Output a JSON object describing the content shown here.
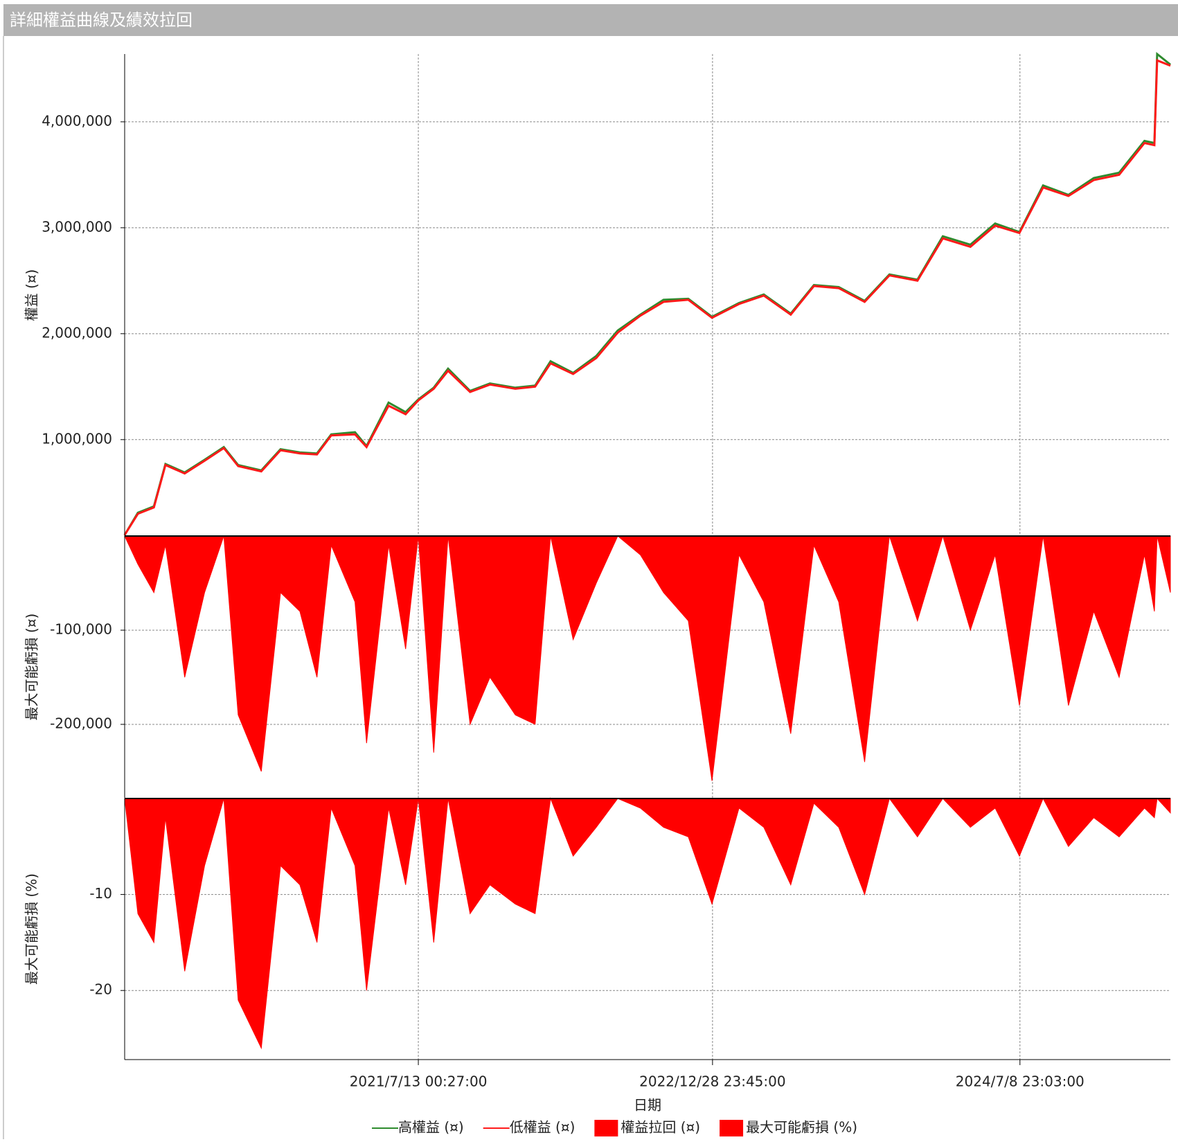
{
  "header": {
    "title": "詳細權益曲線及績效拉回"
  },
  "chart_data": [
    {
      "type": "line",
      "ylabel": "權益 (¤)",
      "x": [
        "2020-01-27",
        "2020-02-20",
        "2020-03-20",
        "2020-04-10",
        "2020-05-15",
        "2020-06-20",
        "2020-07-25",
        "2020-08-20",
        "2020-10-01",
        "2020-11-05",
        "2020-12-10",
        "2021-01-10",
        "2021-02-05",
        "2021-03-20",
        "2021-04-10",
        "2021-05-20",
        "2021-06-20",
        "2021-07-13",
        "2021-08-10",
        "2021-09-05",
        "2021-10-15",
        "2021-11-20",
        "2022-01-05",
        "2022-02-10",
        "2022-03-10",
        "2022-04-20",
        "2022-06-01",
        "2022-07-10",
        "2022-08-20",
        "2022-10-01",
        "2022-11-15",
        "2022-12-28",
        "2023-02-15",
        "2023-04-01",
        "2023-05-20",
        "2023-07-01",
        "2023-08-15",
        "2023-10-01",
        "2023-11-15",
        "2024-01-05",
        "2024-02-20",
        "2024-04-10",
        "2024-05-25",
        "2024-07-08",
        "2024-08-20",
        "2024-10-05",
        "2024-11-20",
        "2025-01-05",
        "2025-02-20",
        "2025-03-10",
        "2025-03-15",
        "2025-04-08"
      ],
      "xlim": [
        "2020-01-27",
        "2025-04-08"
      ],
      "xticks": [
        {
          "value": "2021-07-13T00:27:00",
          "label": "2021/7/13 00:27:00"
        },
        {
          "value": "2022-12-28T23:45:00",
          "label": "2022/12/28 23:45:00"
        },
        {
          "value": "2024-07-08T23:03:00",
          "label": "2024/7/8 23:03:00"
        }
      ],
      "ylim": [
        90000,
        4640000
      ],
      "yticks": [
        {
          "value": 1000000,
          "label": "1,000,000"
        },
        {
          "value": 2000000,
          "label": "2,000,000"
        },
        {
          "value": 3000000,
          "label": "3,000,000"
        },
        {
          "value": 4000000,
          "label": "4,000,000"
        }
      ],
      "grid": true,
      "series": [
        {
          "name": "高權益 (¤)",
          "color": "#2e8b2e",
          "values": [
            100000,
            310000,
            370000,
            770000,
            690000,
            810000,
            930000,
            760000,
            710000,
            910000,
            880000,
            870000,
            1050000,
            1070000,
            940000,
            1350000,
            1260000,
            1380000,
            1490000,
            1670000,
            1460000,
            1530000,
            1490000,
            1510000,
            1740000,
            1630000,
            1790000,
            2030000,
            2180000,
            2320000,
            2330000,
            2160000,
            2290000,
            2370000,
            2190000,
            2460000,
            2440000,
            2310000,
            2560000,
            2510000,
            2920000,
            2840000,
            3040000,
            2960000,
            3400000,
            3310000,
            3470000,
            3520000,
            3820000,
            3800000,
            4640000,
            4540000
          ]
        },
        {
          "name": "低權益 (¤)",
          "color": "#ff1a1a",
          "values": [
            100000,
            300000,
            360000,
            760000,
            680000,
            800000,
            920000,
            750000,
            700000,
            900000,
            870000,
            860000,
            1040000,
            1050000,
            930000,
            1320000,
            1240000,
            1370000,
            1480000,
            1650000,
            1450000,
            1520000,
            1480000,
            1500000,
            1720000,
            1620000,
            1770000,
            2010000,
            2170000,
            2300000,
            2320000,
            2150000,
            2280000,
            2360000,
            2180000,
            2450000,
            2430000,
            2300000,
            2550000,
            2500000,
            2900000,
            2820000,
            3020000,
            2950000,
            3380000,
            3300000,
            3450000,
            3500000,
            3800000,
            3780000,
            4580000,
            4530000
          ]
        }
      ]
    },
    {
      "type": "area",
      "ylabel": "最大可能虧損 (¤)",
      "x": [
        "2020-01-27",
        "2020-02-20",
        "2020-03-20",
        "2020-04-10",
        "2020-05-15",
        "2020-06-20",
        "2020-07-25",
        "2020-08-20",
        "2020-10-01",
        "2020-11-05",
        "2020-12-10",
        "2021-01-10",
        "2021-02-05",
        "2021-03-20",
        "2021-04-10",
        "2021-05-20",
        "2021-06-20",
        "2021-07-13",
        "2021-08-10",
        "2021-09-05",
        "2021-10-15",
        "2021-11-20",
        "2022-01-05",
        "2022-02-10",
        "2022-03-10",
        "2022-04-20",
        "2022-06-01",
        "2022-07-10",
        "2022-08-20",
        "2022-10-01",
        "2022-11-15",
        "2022-12-28",
        "2023-02-15",
        "2023-04-01",
        "2023-05-20",
        "2023-07-01",
        "2023-08-15",
        "2023-10-01",
        "2023-11-15",
        "2024-01-05",
        "2024-02-20",
        "2024-04-10",
        "2024-05-25",
        "2024-07-08",
        "2024-08-20",
        "2024-10-05",
        "2024-11-20",
        "2025-01-05",
        "2025-02-20",
        "2025-03-10",
        "2025-03-15",
        "2025-04-08"
      ],
      "xlim": [
        "2020-01-27",
        "2025-04-08"
      ],
      "xticks": [
        {
          "value": "2021-07-13T00:27:00",
          "label": "2021/7/13 00:27:00"
        },
        {
          "value": "2022-12-28T23:45:00",
          "label": "2022/12/28 23:45:00"
        },
        {
          "value": "2024-07-08T23:03:00",
          "label": "2024/7/8 23:03:00"
        }
      ],
      "ylim": [
        -278000,
        0
      ],
      "yticks": [
        {
          "value": -100000,
          "label": "-100,000"
        },
        {
          "value": -200000,
          "label": "-200,000"
        }
      ],
      "grid": true,
      "series": [
        {
          "name": "權益拉回 (¤)",
          "color": "#ff0000",
          "values": [
            0,
            -30000,
            -60000,
            -10000,
            -150000,
            -60000,
            0,
            -190000,
            -250000,
            -60000,
            -80000,
            -150000,
            -10000,
            -70000,
            -220000,
            -10000,
            -120000,
            0,
            -230000,
            0,
            -200000,
            -150000,
            -190000,
            -200000,
            0,
            -110000,
            -50000,
            0,
            -20000,
            -60000,
            -90000,
            -260000,
            -20000,
            -70000,
            -210000,
            -10000,
            -70000,
            -240000,
            0,
            -90000,
            0,
            -100000,
            -20000,
            -180000,
            0,
            -180000,
            -80000,
            -150000,
            -20000,
            -80000,
            0,
            -60000
          ]
        }
      ]
    },
    {
      "type": "area",
      "ylabel": "最大可能虧損 (%)",
      "xlabel": "日期",
      "x": [
        "2020-01-27",
        "2020-02-20",
        "2020-03-20",
        "2020-04-10",
        "2020-05-15",
        "2020-06-20",
        "2020-07-25",
        "2020-08-20",
        "2020-10-01",
        "2020-11-05",
        "2020-12-10",
        "2021-01-10",
        "2021-02-05",
        "2021-03-20",
        "2021-04-10",
        "2021-05-20",
        "2021-06-20",
        "2021-07-13",
        "2021-08-10",
        "2021-09-05",
        "2021-10-15",
        "2021-11-20",
        "2022-01-05",
        "2022-02-10",
        "2022-03-10",
        "2022-04-20",
        "2022-06-01",
        "2022-07-10",
        "2022-08-20",
        "2022-10-01",
        "2022-11-15",
        "2022-12-28",
        "2023-02-15",
        "2023-04-01",
        "2023-05-20",
        "2023-07-01",
        "2023-08-15",
        "2023-10-01",
        "2023-11-15",
        "2024-01-05",
        "2024-02-20",
        "2024-04-10",
        "2024-05-25",
        "2024-07-08",
        "2024-08-20",
        "2024-10-05",
        "2024-11-20",
        "2025-01-05",
        "2025-02-20",
        "2025-03-10",
        "2025-03-15",
        "2025-04-08"
      ],
      "xlim": [
        "2020-01-27",
        "2025-04-08"
      ],
      "xticks": [
        {
          "value": "2021-07-13T00:27:00",
          "label": "2021/7/13 00:27:00"
        },
        {
          "value": "2022-12-28T23:45:00",
          "label": "2022/12/28 23:45:00"
        },
        {
          "value": "2024-07-08T23:03:00",
          "label": "2024/7/8 23:03:00"
        }
      ],
      "ylim": [
        -27.2,
        0
      ],
      "yticks": [
        -10,
        -20
      ],
      "grid": true,
      "series": [
        {
          "name": "最大可能虧損 (%)",
          "color": "#ff0000",
          "values": [
            0,
            -12,
            -15,
            -2,
            -18,
            -7,
            0,
            -21,
            -26,
            -7,
            -9,
            -15,
            -1,
            -7,
            -20,
            -1,
            -9,
            0,
            -15,
            0,
            -12,
            -9,
            -11,
            -12,
            0,
            -6,
            -3,
            0,
            -1,
            -3,
            -4,
            -11,
            -1,
            -3,
            -9,
            -0.5,
            -3,
            -10,
            0,
            -4,
            0,
            -3,
            -1,
            -6,
            0,
            -5,
            -2,
            -4,
            -1,
            -2,
            0,
            -1.5
          ]
        }
      ]
    }
  ]
}
